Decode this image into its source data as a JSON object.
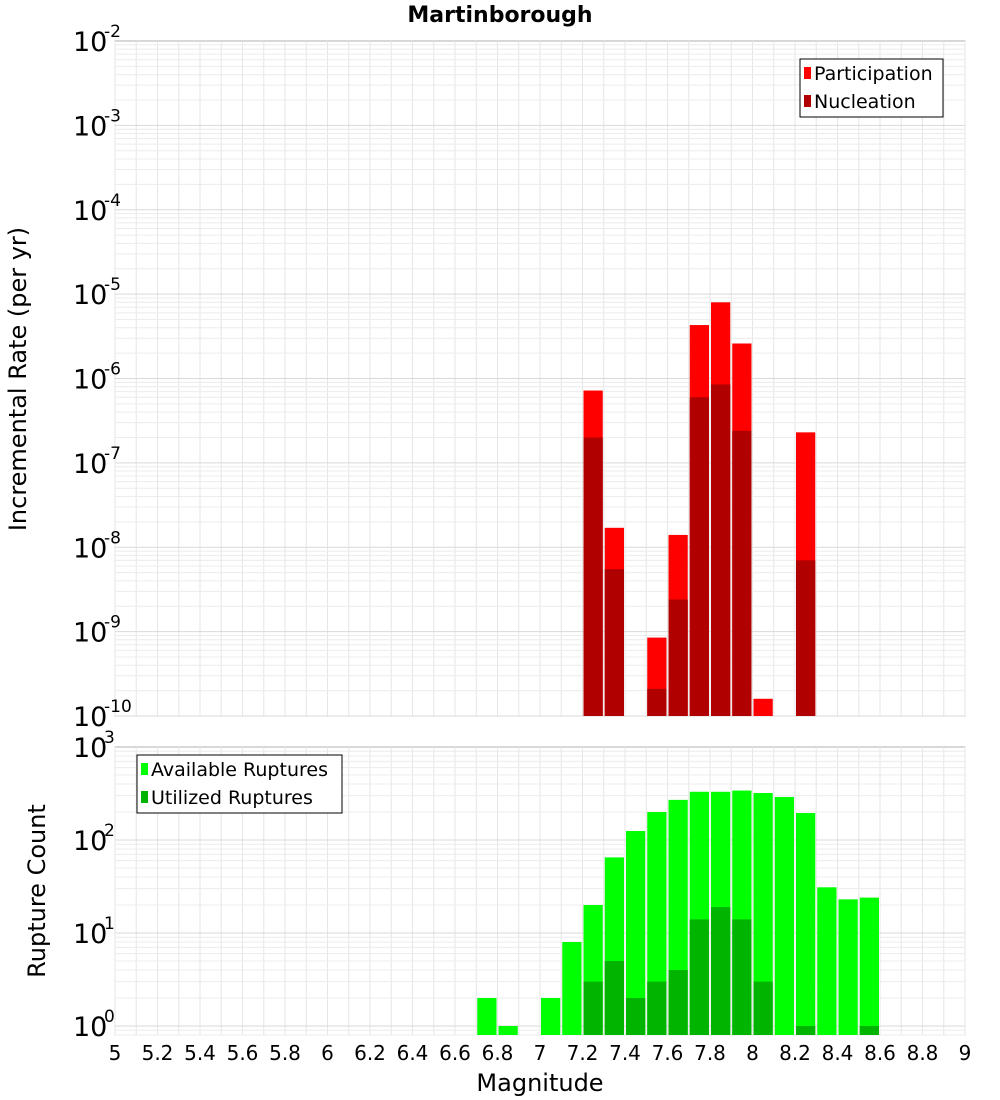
{
  "chart_data": [
    {
      "type": "bar",
      "title": "Martinborough",
      "xlabel": "",
      "ylabel": "Incremental Rate (per yr)",
      "yscale": "log",
      "xlim": [
        5,
        9
      ],
      "ylim": [
        1e-10,
        0.01
      ],
      "y_ticks": [
        {
          "base": "10",
          "exp": "-10"
        },
        {
          "base": "10",
          "exp": "-9"
        },
        {
          "base": "10",
          "exp": "-8"
        },
        {
          "base": "10",
          "exp": "-7"
        },
        {
          "base": "10",
          "exp": "-6"
        },
        {
          "base": "10",
          "exp": "-5"
        },
        {
          "base": "10",
          "exp": "-4"
        },
        {
          "base": "10",
          "exp": "-3"
        },
        {
          "base": "10",
          "exp": "-2"
        }
      ],
      "grid": true,
      "legend_position": "top-right",
      "series": [
        {
          "name": "Participation",
          "color": "#ff0000",
          "points": [
            {
              "x": 7.25,
              "y": 7.2e-07
            },
            {
              "x": 7.35,
              "y": 1.7e-08
            },
            {
              "x": 7.55,
              "y": 8.5e-10
            },
            {
              "x": 7.65,
              "y": 1.4e-08
            },
            {
              "x": 7.75,
              "y": 4.3e-06
            },
            {
              "x": 7.85,
              "y": 8e-06
            },
            {
              "x": 7.95,
              "y": 2.6e-06
            },
            {
              "x": 8.05,
              "y": 1.6e-10
            },
            {
              "x": 8.25,
              "y": 2.3e-07
            }
          ]
        },
        {
          "name": "Nucleation",
          "color": "#b00000",
          "points": [
            {
              "x": 7.25,
              "y": 2e-07
            },
            {
              "x": 7.35,
              "y": 5.5e-09
            },
            {
              "x": 7.55,
              "y": 2.1e-10
            },
            {
              "x": 7.65,
              "y": 2.4e-09
            },
            {
              "x": 7.75,
              "y": 6e-07
            },
            {
              "x": 7.85,
              "y": 8.5e-07
            },
            {
              "x": 7.95,
              "y": 2.4e-07
            },
            {
              "x": 8.25,
              "y": 7e-09
            }
          ]
        }
      ]
    },
    {
      "type": "bar",
      "title": "",
      "xlabel": "Magnitude",
      "ylabel": "Rupture Count",
      "yscale": "log",
      "xlim": [
        5,
        9
      ],
      "ylim": [
        0.8,
        1000
      ],
      "x_ticks": [
        "5",
        "5.2",
        "5.4",
        "5.6",
        "5.8",
        "6",
        "6.2",
        "6.4",
        "6.6",
        "6.8",
        "7",
        "7.2",
        "7.4",
        "7.6",
        "7.8",
        "8",
        "8.2",
        "8.4",
        "8.6",
        "8.8",
        "9"
      ],
      "y_ticks": [
        {
          "base": "10",
          "exp": "0"
        },
        {
          "base": "10",
          "exp": "1"
        },
        {
          "base": "10",
          "exp": "2"
        },
        {
          "base": "10",
          "exp": "3"
        }
      ],
      "grid": true,
      "legend_position": "top-left",
      "series": [
        {
          "name": "Available Ruptures",
          "color": "#00ff00",
          "points": [
            {
              "x": 6.75,
              "y": 2
            },
            {
              "x": 6.85,
              "y": 1
            },
            {
              "x": 7.05,
              "y": 2
            },
            {
              "x": 7.15,
              "y": 8
            },
            {
              "x": 7.25,
              "y": 20
            },
            {
              "x": 7.35,
              "y": 65
            },
            {
              "x": 7.45,
              "y": 125
            },
            {
              "x": 7.55,
              "y": 200
            },
            {
              "x": 7.65,
              "y": 270
            },
            {
              "x": 7.75,
              "y": 330
            },
            {
              "x": 7.85,
              "y": 330
            },
            {
              "x": 7.95,
              "y": 340
            },
            {
              "x": 8.05,
              "y": 320
            },
            {
              "x": 8.15,
              "y": 290
            },
            {
              "x": 8.25,
              "y": 195
            },
            {
              "x": 8.35,
              "y": 31
            },
            {
              "x": 8.45,
              "y": 23
            },
            {
              "x": 8.55,
              "y": 24
            }
          ]
        },
        {
          "name": "Utilized Ruptures",
          "color": "#00b400",
          "points": [
            {
              "x": 7.25,
              "y": 3
            },
            {
              "x": 7.35,
              "y": 5
            },
            {
              "x": 7.45,
              "y": 2
            },
            {
              "x": 7.55,
              "y": 3
            },
            {
              "x": 7.65,
              "y": 4
            },
            {
              "x": 7.75,
              "y": 14
            },
            {
              "x": 7.85,
              "y": 19
            },
            {
              "x": 7.95,
              "y": 14
            },
            {
              "x": 8.05,
              "y": 3
            },
            {
              "x": 8.25,
              "y": 1
            },
            {
              "x": 8.55,
              "y": 1
            }
          ]
        }
      ]
    }
  ]
}
